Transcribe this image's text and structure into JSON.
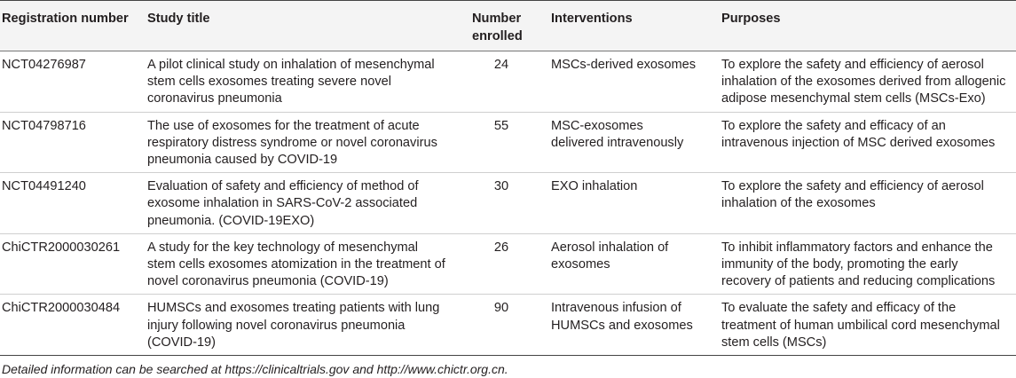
{
  "table": {
    "headers": {
      "registration": "Registration number",
      "title": "Study title",
      "number": "Number enrolled",
      "interventions": "Interventions",
      "purposes": "Purposes"
    },
    "rows": [
      {
        "registration": "NCT04276987",
        "title": "A pilot clinical study on inhalation of mesenchymal stem cells exosomes treating severe novel coronavirus pneumonia",
        "number": "24",
        "interventions": "MSCs-derived exosomes",
        "purposes": "To explore the safety and efficiency of aerosol inhalation of the exosomes derived from allogenic adipose mesenchymal stem cells (MSCs-Exo)"
      },
      {
        "registration": "NCT04798716",
        "title": "The use of exosomes for the treatment of acute respiratory distress syndrome or novel coronavirus pneumonia caused by COVID-19",
        "number": "55",
        "interventions": "MSC-exosomes delivered intravenously",
        "purposes": "To explore the safety and efficacy of an intravenous injection of MSC derived exosomes"
      },
      {
        "registration": "NCT04491240",
        "title": "Evaluation of safety and efficiency of method of exosome inhalation in SARS-CoV-2 associated pneumonia. (COVID-19EXO)",
        "number": "30",
        "interventions": "EXO inhalation",
        "purposes": "To explore the safety and efficiency of aerosol inhalation of the exosomes"
      },
      {
        "registration": "ChiCTR2000030261",
        "title": "A study for the key technology of mesenchymal stem cells exosomes atomization in the treatment of novel coronavirus pneumonia (COVID-19)",
        "number": "26",
        "interventions": "Aerosol inhalation of exosomes",
        "purposes": "To inhibit inflammatory factors and enhance the immunity of the body, promoting the early recovery of patients and reducing complications"
      },
      {
        "registration": "ChiCTR2000030484",
        "title": "HUMSCs and exosomes treating patients with lung injury following novel coronavirus pneumonia (COVID-19)",
        "number": "90",
        "interventions": "Intravenous infusion of HUMSCs and exosomes",
        "purposes": "To evaluate the safety and efficacy of the treatment of human umbilical cord mesenchymal stem cells (MSCs)"
      }
    ]
  },
  "footnote": "Detailed information can be searched at https://clinicaltrials.gov and http://www.chictr.org.cn."
}
